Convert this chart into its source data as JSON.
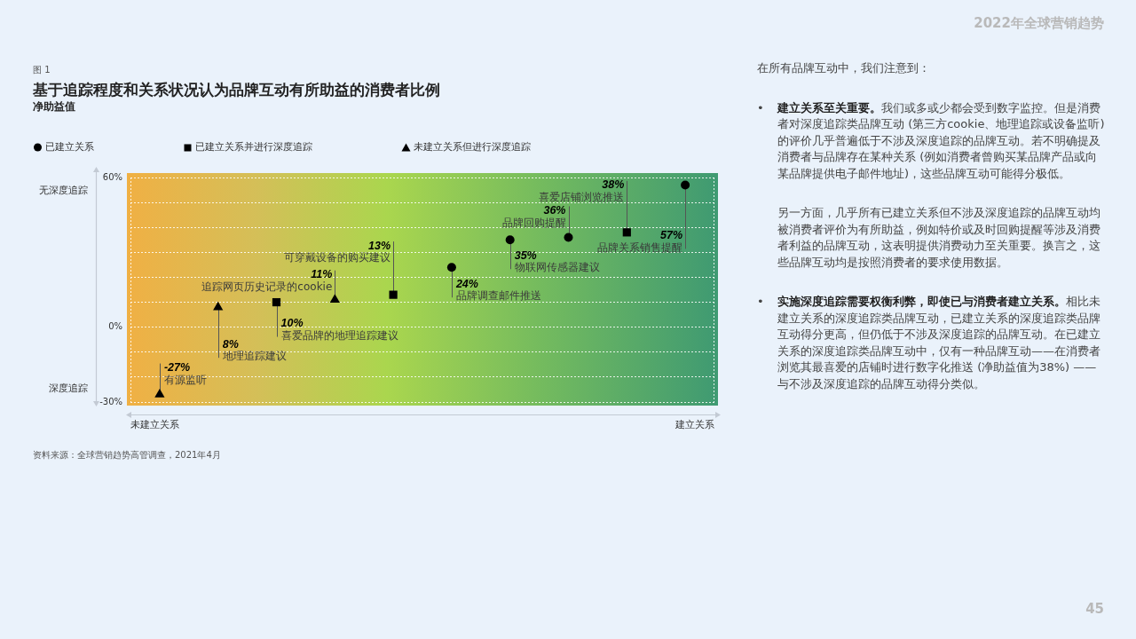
{
  "chart_data": {
    "type": "scatter",
    "title": "基于追踪程度和关系状况认为品牌互动有所助益的消费者比例",
    "subtitle": "净助益值",
    "categories": [
      null,
      null,
      null,
      null,
      null,
      null,
      null,
      null,
      null,
      null
    ],
    "series": [
      {
        "name": "已建立关系",
        "color": "#000000",
        "marker": "circle",
        "values": [
          null,
          null,
          null,
          null,
          null,
          24,
          35,
          36,
          null,
          57
        ],
        "value_labels": [
          null,
          null,
          null,
          null,
          null,
          "24%",
          "35%",
          "36%",
          null,
          "57%"
        ]
      },
      {
        "name": "已建立关系并进行深度追踪",
        "color": "#000000",
        "marker": "square",
        "values": [
          null,
          null,
          10,
          null,
          13,
          null,
          null,
          null,
          38,
          null
        ],
        "value_labels": [
          null,
          null,
          "10%",
          null,
          "13%",
          null,
          null,
          null,
          "38%",
          null
        ]
      },
      {
        "name": "未建立关系但进行深度追踪",
        "color": "#000000",
        "marker": "triangle",
        "values": [
          -27,
          8,
          null,
          11,
          null,
          null,
          null,
          null,
          null,
          null
        ],
        "value_labels": [
          "-27%",
          "8%",
          null,
          "11%",
          null,
          null,
          null,
          null,
          null,
          null
        ]
      }
    ],
    "ylim": [
      -30,
      60
    ],
    "yticks": [
      {
        "value": -30,
        "label": "-30%"
      },
      {
        "value": -20,
        "label": null
      },
      {
        "value": -10,
        "label": null
      },
      {
        "value": 0,
        "label": "0%"
      },
      {
        "value": 10,
        "label": null
      },
      {
        "value": 20,
        "label": null
      },
      {
        "value": 30,
        "label": null
      },
      {
        "value": 40,
        "label": null
      },
      {
        "value": 50,
        "label": null
      },
      {
        "value": 60,
        "label": "60%"
      }
    ],
    "grid": "y",
    "legend": "top left",
    "tick_labels": "y",
    "annotations": [
      "2022年全球营销趋势",
      "图 1",
      "无深度追踪",
      "深度追踪",
      "未建立关系",
      "建立关系",
      "资料来源：全球营销趋势高管调查，2021年4月",
      "有源监听",
      "地理追踪建议",
      "喜爱品牌的地理追踪建议",
      "追踪网页历史记录的cookie",
      "可穿戴设备的购买建议",
      "品牌调查邮件推送",
      "物联网传感器建议",
      "品牌回购提醒",
      "喜爱店铺浏览推送",
      "品牌关系销售提醒",
      "在所有品牌互动中，我们注意到：",
      "•",
      "建立关系至关重要。",
      "我们或多或少都会受到数字监控。但是消费者对深度追踪类品牌互动 (第三方cookie、地理追踪或设备监听) 的评价几乎普遍低于不涉及深度追踪的品牌互动。若不明确提及消费者与品牌存在某种关系 (例如消费者曾购买某品牌产品或向某品牌提供电子邮件地址)，这些品牌互动可能得分极低。",
      "另一方面，几乎所有已建立关系但不涉及深度追踪的品牌互动均被消费者评价为有所助益，例如特价或及时回购提醒等涉及消费者利益的品牌互动，这表明提供消费动力至关重要。换言之，这些品牌互动均是按照消费者的要求使用数据。",
      "•",
      "实施深度追踪需要权衡利弊，即使已与消费者建立关系。",
      "相比未建立关系的深度追踪类品牌互动，已建立关系的深度追踪类品牌互动得分更高，但仍低于不涉及深度追踪的品牌互动。在已建立关系的深度追踪类品牌互动中，仅有一种品牌互动——在消费者浏览其最喜爱的店铺时进行数字化推送 (净助益值为38%) ——与不涉及深度追踪的品牌互动得分类似。",
      "45"
    ]
  }
}
